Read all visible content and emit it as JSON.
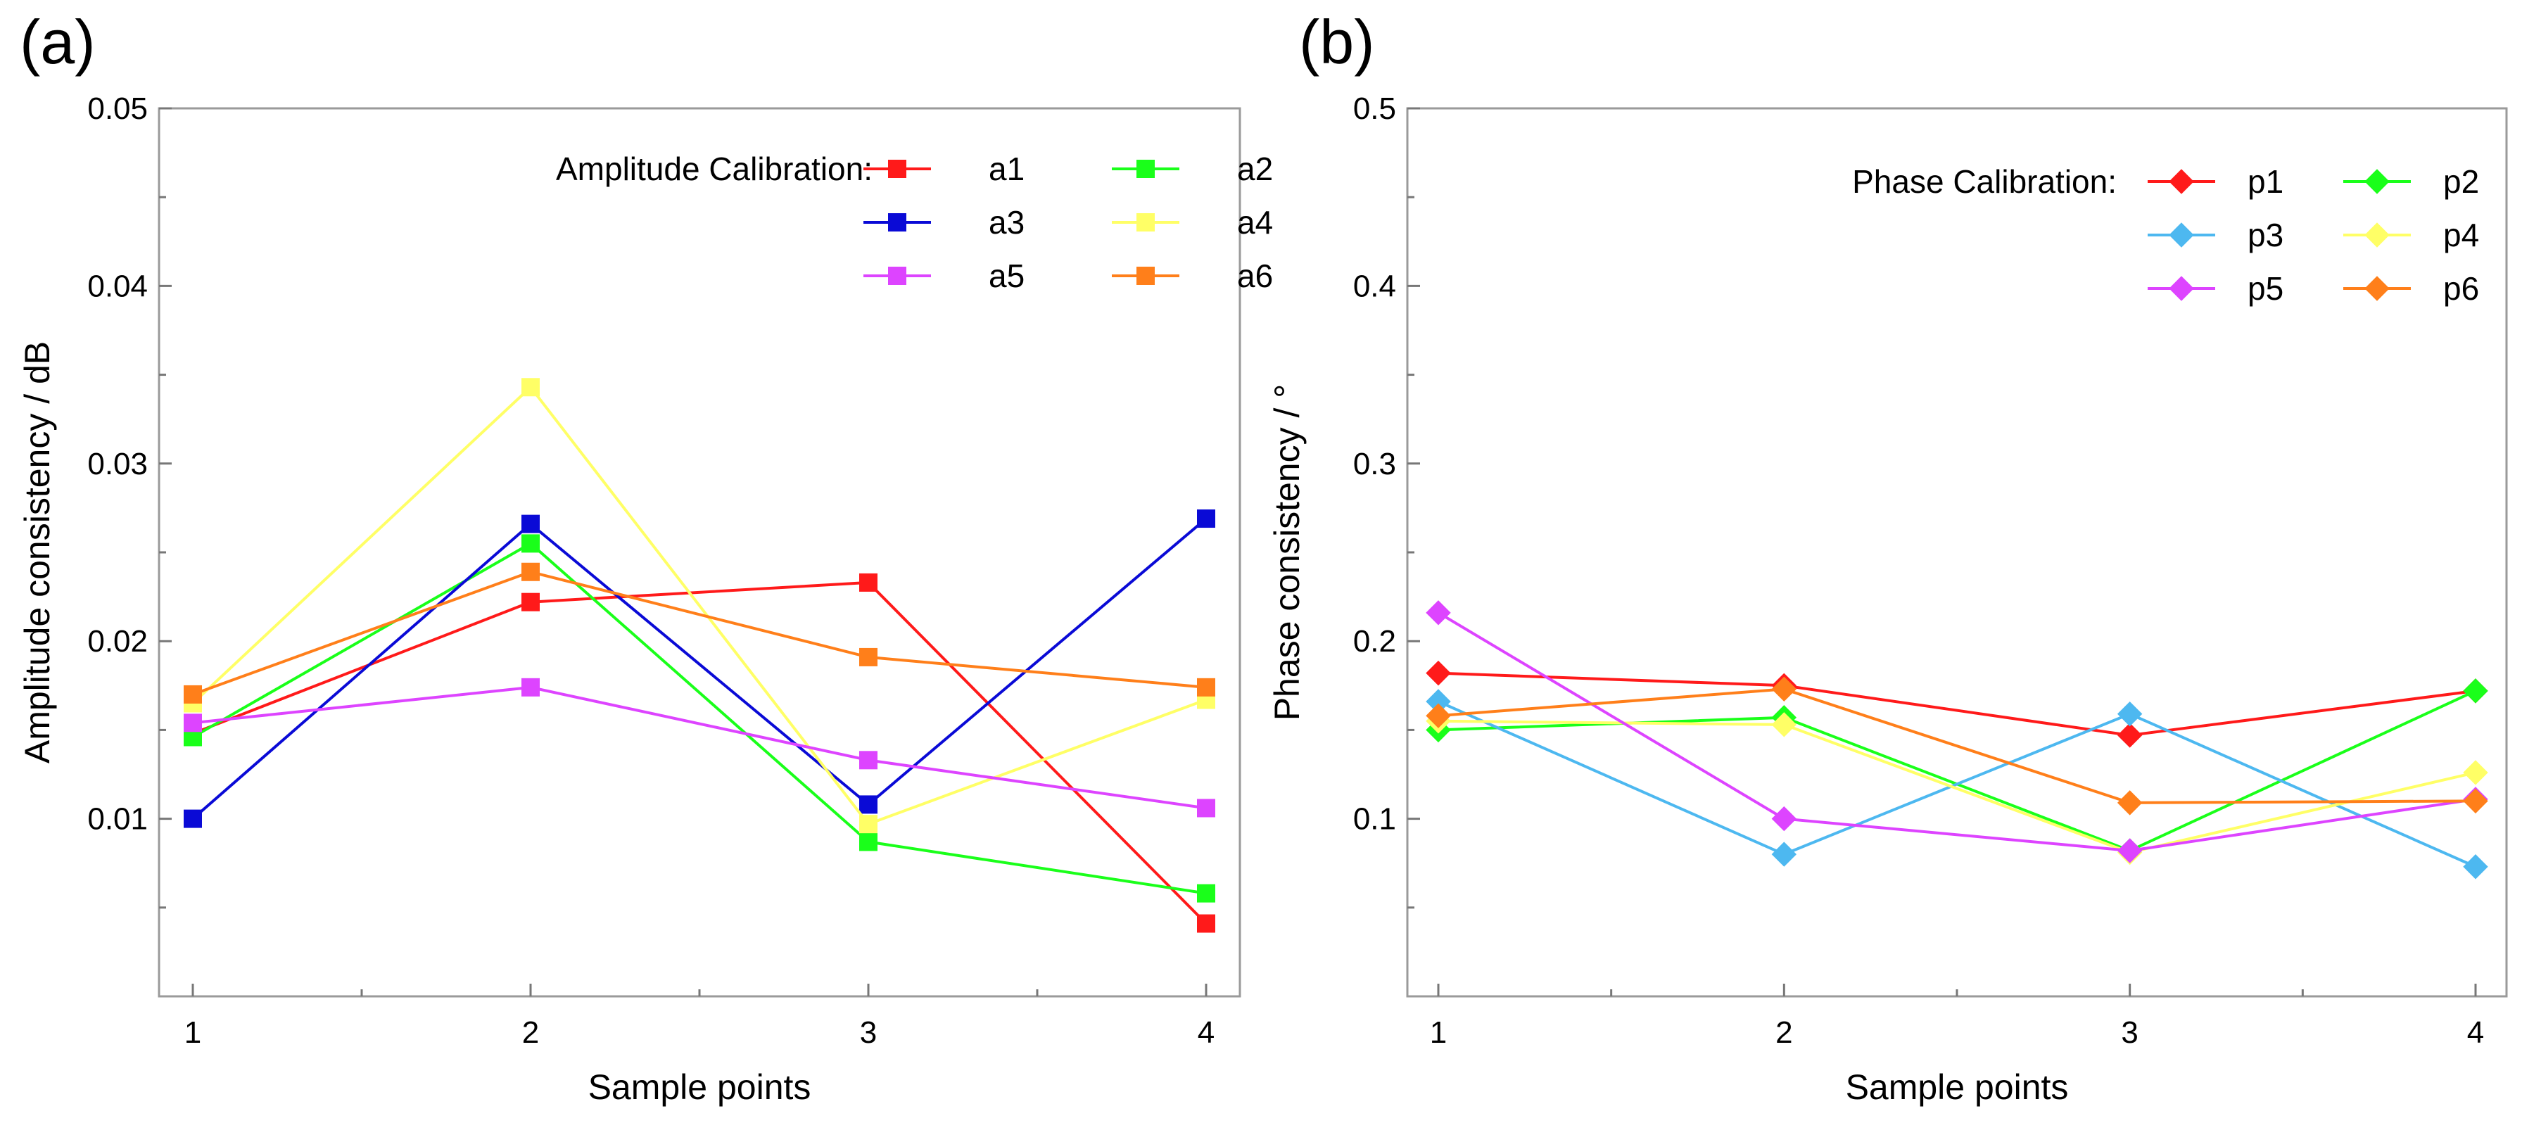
{
  "chart_data": [
    {
      "panel_label": "(a)",
      "type": "line",
      "marker": "square",
      "xlabel": "Sample points",
      "ylabel": "Amplitude consistency / dB",
      "x": [
        1,
        2,
        3,
        4
      ],
      "x_ticks": [
        "1",
        "2",
        "3",
        "4"
      ],
      "ylim": [
        0,
        0.05
      ],
      "y_ticks": [
        "0.01",
        "0.02",
        "0.03",
        "0.04",
        "0.05"
      ],
      "legend_title": "Amplitude Calibration:",
      "legend_position": "top-right",
      "series": [
        {
          "name": "a1",
          "color": "#ff1a1a",
          "values": [
            0.0148,
            0.0222,
            0.0233,
            0.0041
          ]
        },
        {
          "name": "a2",
          "color": "#1aff1a",
          "values": [
            0.0146,
            0.0255,
            0.0087,
            0.0058
          ]
        },
        {
          "name": "a3",
          "color": "#0a0ad6",
          "values": [
            0.01,
            0.0266,
            0.0108,
            0.0269
          ]
        },
        {
          "name": "a4",
          "color": "#ffff66",
          "values": [
            0.0165,
            0.0343,
            0.0097,
            0.0167
          ]
        },
        {
          "name": "a5",
          "color": "#dd44ff",
          "values": [
            0.0154,
            0.0174,
            0.0133,
            0.0106
          ]
        },
        {
          "name": "a6",
          "color": "#ff7f1a",
          "values": [
            0.017,
            0.0239,
            0.0191,
            0.0174
          ]
        }
      ]
    },
    {
      "panel_label": "(b)",
      "type": "line",
      "marker": "diamond",
      "xlabel": "Sample points",
      "ylabel": "Phase consistency / °",
      "x": [
        1,
        2,
        3,
        4
      ],
      "x_ticks": [
        "1",
        "2",
        "3",
        "4"
      ],
      "ylim": [
        0,
        0.5
      ],
      "y_ticks": [
        "0.1",
        "0.2",
        "0.3",
        "0.4",
        "0.5"
      ],
      "legend_title": "Phase Calibration:",
      "legend_position": "top-right",
      "series": [
        {
          "name": "p1",
          "color": "#ff1a1a",
          "values": [
            0.182,
            0.175,
            0.147,
            0.172
          ]
        },
        {
          "name": "p2",
          "color": "#1aff1a",
          "values": [
            0.15,
            0.157,
            0.082,
            0.172
          ]
        },
        {
          "name": "p3",
          "color": "#4db8f0",
          "values": [
            0.166,
            0.08,
            0.159,
            0.073
          ]
        },
        {
          "name": "p4",
          "color": "#ffff66",
          "values": [
            0.155,
            0.153,
            0.081,
            0.126
          ]
        },
        {
          "name": "p5",
          "color": "#dd44ff",
          "values": [
            0.216,
            0.1,
            0.082,
            0.111
          ]
        },
        {
          "name": "p6",
          "color": "#ff7f1a",
          "values": [
            0.158,
            0.173,
            0.109,
            0.11
          ]
        }
      ]
    }
  ]
}
